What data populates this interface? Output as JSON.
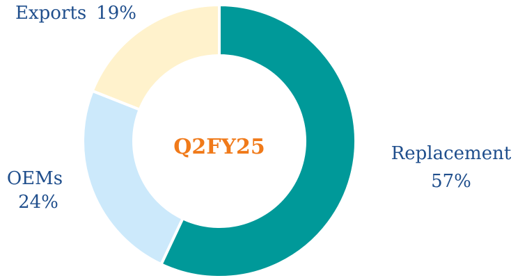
{
  "chart_data": {
    "type": "donut",
    "center_label": "Q2FY25",
    "categories": [
      "Replacement",
      "OEMs",
      "Exports"
    ],
    "values": [
      57,
      24,
      19
    ],
    "value_labels": [
      "57%",
      "24%",
      "19%"
    ],
    "colors": [
      "#009999",
      "#cce9fb",
      "#fff2cc"
    ]
  }
}
